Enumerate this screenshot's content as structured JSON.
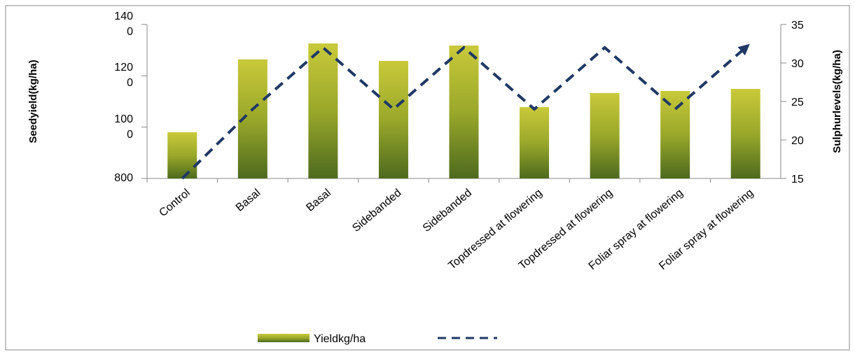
{
  "chart_data": {
    "type": "bar",
    "categories": [
      "Control",
      "Basal",
      "Basal",
      "Sidebanded",
      "Sidebanded",
      "Topdressed at flowering",
      "Topdressed at flowering",
      "Foliar spray at flowering",
      "Foliar spray at flowering"
    ],
    "series": [
      {
        "name": "Yieldkg/ha",
        "type": "bar",
        "color": "#9aa82a",
        "values": [
          980,
          1264,
          1326,
          1258,
          1318,
          1078,
          1133,
          1141,
          1149
        ]
      },
      {
        "type": "line",
        "axis": "y2",
        "color": "#1f3864",
        "values": [
          15,
          24,
          32,
          24,
          32,
          24,
          32,
          24,
          32
        ]
      }
    ],
    "ylabel": "Seedyield(kg/ha)",
    "y2label": "Sulphurlevels(kg/ha)",
    "ylim": [
      800,
      1400
    ],
    "yticks": [
      {
        "value": 800,
        "label": "800"
      },
      {
        "value": 1000,
        "label": "1000"
      },
      {
        "value": 1200,
        "label": "1200"
      },
      {
        "value": 1400,
        "label": "1400"
      }
    ],
    "y2lim": [
      15,
      35
    ],
    "y2ticks": [
      15,
      20,
      25,
      30,
      35
    ],
    "grid": false
  }
}
